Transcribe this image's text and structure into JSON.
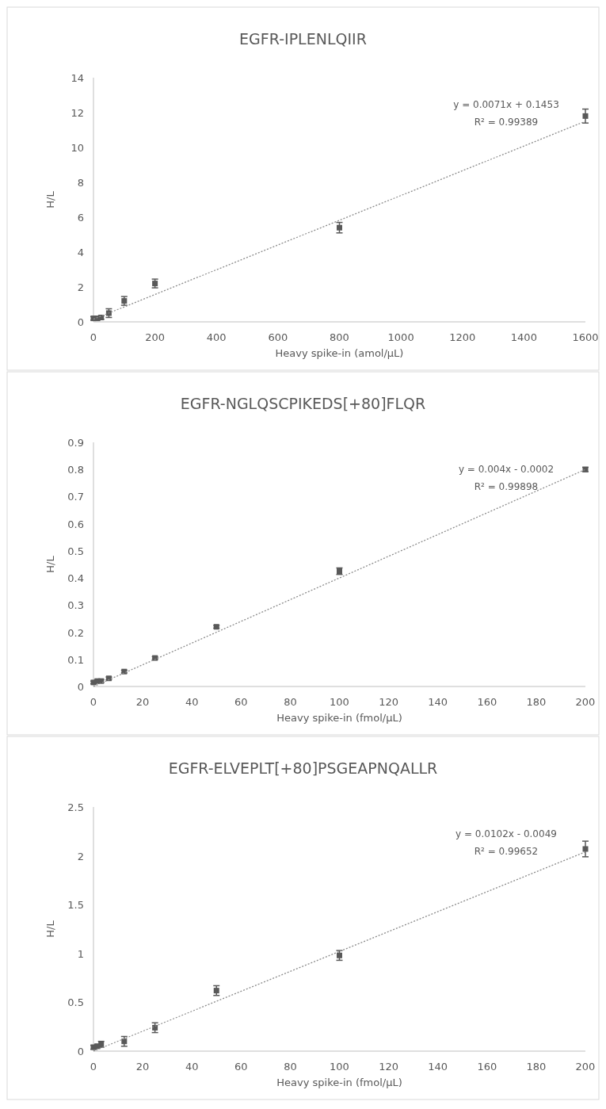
{
  "chart_data": [
    {
      "type": "scatter",
      "title": "EGFR-IPLENLQIIR",
      "xlabel": "Heavy spike-in (amol/µL)",
      "ylabel": "H/L",
      "xlim": [
        0,
        1600
      ],
      "ylim": [
        0,
        14
      ],
      "xticks": [
        0,
        200,
        400,
        600,
        800,
        1000,
        1200,
        1400,
        1600
      ],
      "yticks": [
        0,
        2,
        4,
        6,
        8,
        10,
        12,
        14
      ],
      "annotations": [
        "y = 0.0071x + 0.1453",
        "R² = 0.99389"
      ],
      "series": [
        {
          "type": "scatter",
          "color": "#595959",
          "marker": "square",
          "x": [
            0,
            12.5,
            25,
            50,
            100,
            200,
            800,
            1600
          ],
          "values": [
            0.2,
            0.2,
            0.25,
            0.5,
            1.2,
            2.2,
            5.4,
            11.8
          ],
          "errors": [
            0.1,
            0.1,
            0.1,
            0.25,
            0.25,
            0.25,
            0.3,
            0.4
          ]
        },
        {
          "type": "line",
          "color": "#8c8c8c",
          "line_style": "dotted",
          "x": [
            0,
            1600
          ],
          "values": [
            0.15,
            11.5
          ]
        }
      ]
    },
    {
      "type": "scatter",
      "title": "EGFR-NGLQSCPIKEDS[+80]FLQR",
      "xlabel": "Heavy spike-in (fmol/µL)",
      "ylabel": "H/L",
      "xlim": [
        0,
        200
      ],
      "ylim": [
        0,
        0.9
      ],
      "xticks": [
        0,
        20,
        40,
        60,
        80,
        100,
        120,
        140,
        160,
        180,
        200
      ],
      "yticks": [
        0,
        0.1,
        0.2,
        0.3,
        0.4,
        0.5,
        0.6,
        0.7,
        0.8,
        0.9
      ],
      "annotations": [
        "y = 0.004x - 0.0002",
        "R² = 0.99898"
      ],
      "series": [
        {
          "type": "scatter",
          "color": "#595959",
          "marker": "square",
          "x": [
            0,
            1.5625,
            3.125,
            6.25,
            12.5,
            25,
            50,
            100,
            200
          ],
          "values": [
            0.015,
            0.02,
            0.02,
            0.03,
            0.055,
            0.105,
            0.22,
            0.425,
            0.8
          ],
          "errors": [
            0.005,
            0.005,
            0.005,
            0.005,
            0.005,
            0.005,
            0.005,
            0.012,
            0.008
          ]
        },
        {
          "type": "line",
          "color": "#8c8c8c",
          "line_style": "dotted",
          "x": [
            0,
            200
          ],
          "values": [
            0,
            0.8
          ]
        }
      ]
    },
    {
      "type": "scatter",
      "title": "EGFR-ELVEPLT[+80]PSGEAPNQALLR",
      "xlabel": "Heavy spike-in (fmol/µL)",
      "ylabel": "H/L",
      "xlim": [
        0,
        200
      ],
      "ylim": [
        0,
        2.5
      ],
      "xticks": [
        0,
        20,
        40,
        60,
        80,
        100,
        120,
        140,
        160,
        180,
        200
      ],
      "yticks": [
        0,
        0.5,
        1,
        1.5,
        2,
        2.5
      ],
      "annotations": [
        "y = 0.0102x - 0.0049",
        "R² = 0.99652"
      ],
      "series": [
        {
          "type": "scatter",
          "color": "#595959",
          "marker": "square",
          "x": [
            0,
            1.5625,
            3.125,
            12.5,
            25,
            50,
            100,
            200
          ],
          "values": [
            0.04,
            0.05,
            0.07,
            0.1,
            0.24,
            0.62,
            0.98,
            2.07
          ],
          "errors": [
            0.02,
            0.02,
            0.03,
            0.05,
            0.05,
            0.05,
            0.05,
            0.08
          ]
        },
        {
          "type": "line",
          "color": "#8c8c8c",
          "line_style": "dotted",
          "x": [
            0,
            200
          ],
          "values": [
            0,
            2.04
          ]
        }
      ]
    }
  ]
}
